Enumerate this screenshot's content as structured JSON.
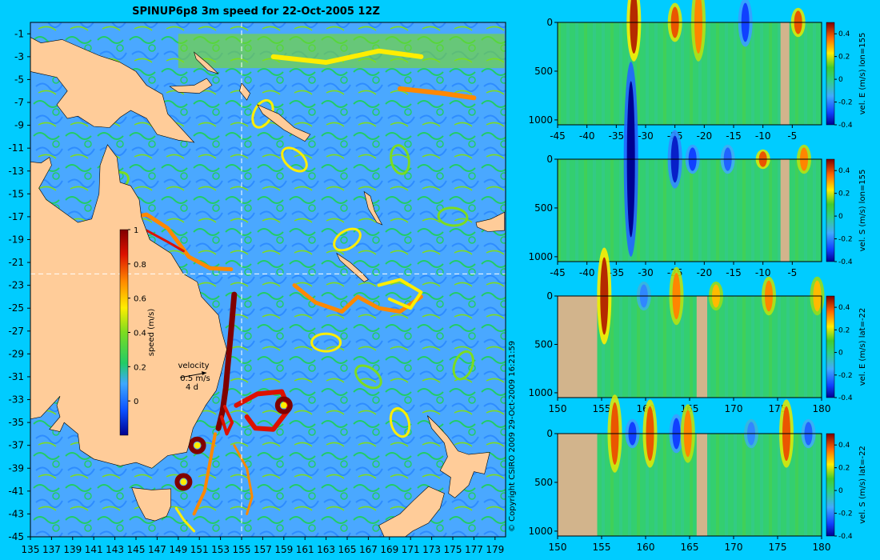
{
  "title": "SPINUP6p8 3m speed for 22-Oct-2005 12Z",
  "copyright": "© Copyright CSIRO 2009  29-Oct-2009 16:21:59",
  "colors": {
    "background": "#00ccff",
    "land": "#ffcc99",
    "section_land": "#d2b48c",
    "guide_line": "#ffffff"
  },
  "chart_data": [
    {
      "type": "heatmap",
      "name": "map",
      "title": "SPINUP6p8 3m speed for 22-Oct-2005 12Z",
      "xlim": [
        135,
        180
      ],
      "ylim": [
        -45,
        0
      ],
      "x_ticks": [
        "135",
        "137",
        "139",
        "141",
        "143",
        "145",
        "147",
        "149",
        "151",
        "153",
        "155",
        "157",
        "159",
        "161",
        "163",
        "165",
        "167",
        "169",
        "171",
        "173",
        "175",
        "177",
        "179"
      ],
      "y_ticks": [
        "-1",
        "-3",
        "-5",
        "-7",
        "-9",
        "-11",
        "-13",
        "-15",
        "-17",
        "-19",
        "-21",
        "-23",
        "-25",
        "-27",
        "-29",
        "-31",
        "-33",
        "-35",
        "-37",
        "-39",
        "-41",
        "-43",
        "-45"
      ],
      "guide_lon": 155,
      "guide_lat": -22,
      "colorbar": {
        "label": "speed (m/s)",
        "range": [
          -0.2,
          1
        ],
        "ticks": [
          "1",
          "0.8",
          "0.6",
          "0.4",
          "0.2",
          "0"
        ]
      },
      "velocity_legend": {
        "label": "velocity",
        "speed": "0.5 m/s",
        "duration": "4 d"
      },
      "features": {
        "eac_core_speed": 1.0,
        "eddies": [
          {
            "lon": 150.8,
            "lat": -37.0,
            "speed": 1.0
          },
          {
            "lon": 149.5,
            "lat": -40.2,
            "speed": 1.0
          },
          {
            "lon": 159.0,
            "lat": -33.5,
            "speed": 0.9
          }
        ]
      }
    },
    {
      "type": "heatmap",
      "name": "section-1",
      "xlim": [
        -45,
        0
      ],
      "ylim": [
        1050,
        0
      ],
      "x_ticks": [
        "-45",
        "-40",
        "-35",
        "-30",
        "-25",
        "-20",
        "-15",
        "-10",
        "-5"
      ],
      "y_ticks": [
        "0",
        "500",
        "1000"
      ],
      "colorbar": {
        "label": "vel. E (m/s) lon=155",
        "range": [
          -0.4,
          0.5
        ],
        "ticks": [
          "0.4",
          "0.2",
          "0",
          "-0.2",
          "-0.4"
        ]
      },
      "land": [
        [
          -7,
          -5.5
        ]
      ],
      "anomalies": [
        {
          "x": -32,
          "v": 0.45,
          "depth": 400
        },
        {
          "x": -25,
          "v": 0.4,
          "depth": 200
        },
        {
          "x": -21,
          "v": 0.35,
          "depth": 400
        },
        {
          "x": -13,
          "v": -0.3,
          "depth": 250
        },
        {
          "x": -4,
          "v": 0.4,
          "depth": 150
        }
      ]
    },
    {
      "type": "heatmap",
      "name": "section-2",
      "xlim": [
        -45,
        0
      ],
      "ylim": [
        1050,
        0
      ],
      "x_ticks": [
        "-45",
        "-40",
        "-35",
        "-30",
        "-25",
        "-20",
        "-15",
        "-10",
        "-5"
      ],
      "y_ticks": [
        "0",
        "500",
        "1000"
      ],
      "colorbar": {
        "label": "vel. S (m/s) lon=155",
        "range": [
          -0.4,
          0.5
        ],
        "ticks": [
          "0.4",
          "0.2",
          "0",
          "-0.2",
          "-0.4"
        ]
      },
      "land": [
        [
          -7,
          -5.5
        ]
      ],
      "anomalies": [
        {
          "x": -32.5,
          "v": -0.45,
          "depth": 1000
        },
        {
          "x": -25,
          "v": -0.35,
          "depth": 300
        },
        {
          "x": -22,
          "v": -0.3,
          "depth": 150
        },
        {
          "x": -16,
          "v": -0.25,
          "depth": 150
        },
        {
          "x": -10,
          "v": 0.4,
          "depth": 100
        },
        {
          "x": -3,
          "v": 0.35,
          "depth": 150
        }
      ]
    },
    {
      "type": "heatmap",
      "name": "section-3",
      "xlim": [
        150,
        180
      ],
      "ylim": [
        1050,
        0
      ],
      "x_ticks": [
        "150",
        "155",
        "160",
        "165",
        "170",
        "175",
        "180"
      ],
      "y_ticks": [
        "0",
        "500",
        "1000"
      ],
      "colorbar": {
        "label": "vel. E (m/s) lat=-22",
        "range": [
          -0.4,
          0.5
        ],
        "ticks": [
          "0.4",
          "0.2",
          "0",
          "-0.2",
          "-0.4"
        ]
      },
      "land": [
        [
          150,
          154.5
        ],
        [
          165.8,
          167
        ]
      ],
      "anomalies": [
        {
          "x": 155.3,
          "v": 0.45,
          "depth": 500
        },
        {
          "x": 159.8,
          "v": -0.2,
          "depth": 150
        },
        {
          "x": 163.5,
          "v": 0.35,
          "depth": 300
        },
        {
          "x": 168,
          "v": 0.3,
          "depth": 150
        },
        {
          "x": 174,
          "v": 0.35,
          "depth": 200
        },
        {
          "x": 179.5,
          "v": 0.3,
          "depth": 200
        }
      ]
    },
    {
      "type": "heatmap",
      "name": "section-4",
      "xlim": [
        150,
        180
      ],
      "ylim": [
        1050,
        0
      ],
      "x_ticks": [
        "150",
        "155",
        "160",
        "165",
        "170",
        "175",
        "180"
      ],
      "y_ticks": [
        "0",
        "500",
        "1000"
      ],
      "colorbar": {
        "label": "vel. S (m/s) lat=-22",
        "range": [
          -0.4,
          0.5
        ],
        "ticks": [
          "0.4",
          "0.2",
          "0",
          "-0.2",
          "-0.4"
        ]
      },
      "land": [
        [
          150,
          154.5
        ],
        [
          165.8,
          167
        ]
      ],
      "anomalies": [
        {
          "x": 156.5,
          "v": 0.4,
          "depth": 400
        },
        {
          "x": 158.5,
          "v": -0.3,
          "depth": 150
        },
        {
          "x": 160.5,
          "v": 0.4,
          "depth": 350
        },
        {
          "x": 163.5,
          "v": -0.3,
          "depth": 200
        },
        {
          "x": 164.8,
          "v": 0.35,
          "depth": 300
        },
        {
          "x": 172,
          "v": -0.2,
          "depth": 150
        },
        {
          "x": 176,
          "v": 0.4,
          "depth": 350
        },
        {
          "x": 178.5,
          "v": -0.25,
          "depth": 150
        }
      ]
    }
  ]
}
